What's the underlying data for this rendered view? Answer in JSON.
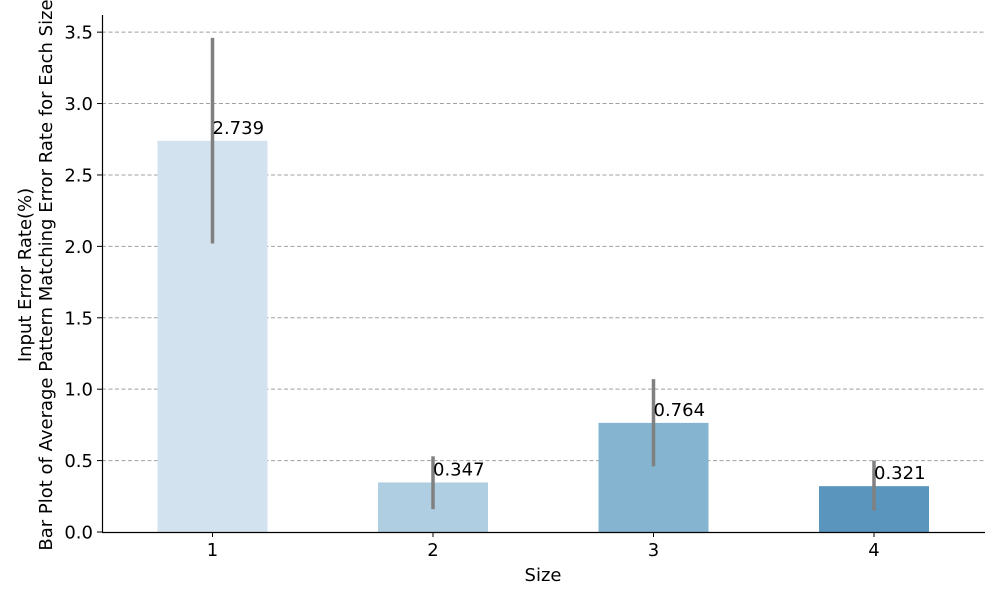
{
  "chart_data": {
    "type": "bar",
    "title": "",
    "xlabel": "Size",
    "ylabel_lines": [
      "Bar Plot of Average Pattern Matching Error Rate for Each Size",
      "Input Error Rate(%)"
    ],
    "categories": [
      "1",
      "2",
      "3",
      "4"
    ],
    "values": [
      2.739,
      0.347,
      0.764,
      0.321
    ],
    "value_labels": [
      "2.739",
      "0.347",
      "0.764",
      "0.321"
    ],
    "error_low": [
      2.02,
      0.16,
      0.46,
      0.15
    ],
    "error_high": [
      3.46,
      0.53,
      1.07,
      0.5
    ],
    "ylim": [
      0,
      3.62
    ],
    "yticks": [
      0.0,
      0.5,
      1.0,
      1.5,
      2.0,
      2.5,
      3.0,
      3.5
    ],
    "ytick_labels": [
      "0.0",
      "0.5",
      "1.0",
      "1.5",
      "2.0",
      "2.5",
      "3.0",
      "3.5"
    ],
    "grid": "y-dashed",
    "legend": "none",
    "colors": {
      "bars": [
        "#d3e2ef",
        "#b0cee2",
        "#84b4cf",
        "#5a95be"
      ],
      "error_bar": "#808080",
      "grid": "#a0a0a0",
      "axis": "#000000"
    }
  }
}
